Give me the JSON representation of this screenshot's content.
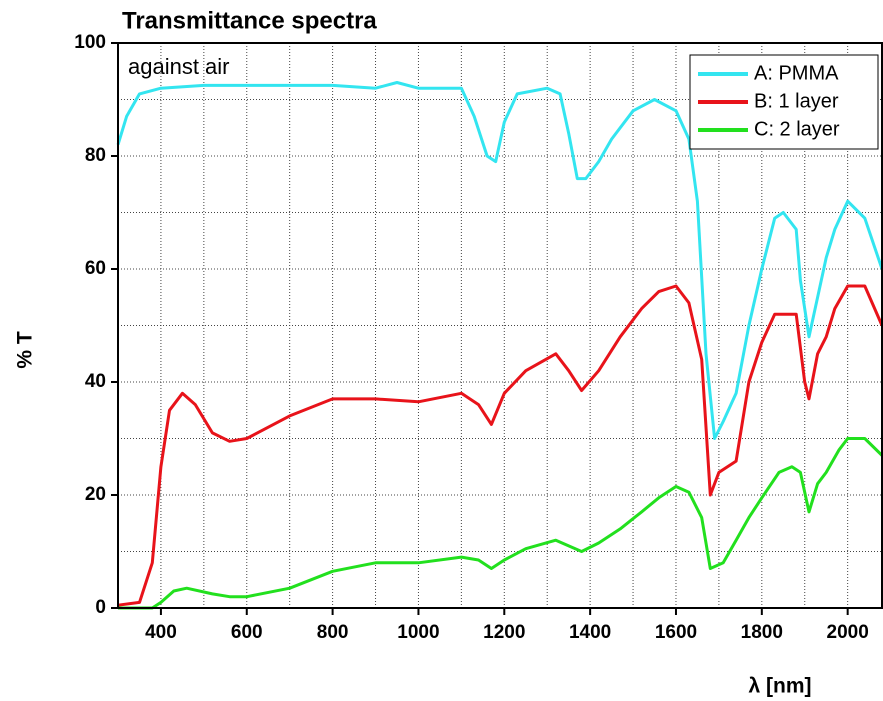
{
  "chart_data": {
    "type": "line",
    "title": "Transmittance spectra",
    "annotation": "against air",
    "xlabel": "λ [nm]",
    "ylabel": "% T",
    "xlim": [
      300,
      2080
    ],
    "xticks": [
      400,
      600,
      800,
      1000,
      1200,
      1400,
      1600,
      1800,
      2000
    ],
    "ylim": [
      0,
      100
    ],
    "yticks": [
      0,
      20,
      40,
      60,
      80,
      100
    ],
    "grid": true,
    "legend": "upper right",
    "series": [
      {
        "name": "A: PMMA",
        "color": "#33e5f0",
        "x": [
          300,
          320,
          350,
          400,
          500,
          600,
          700,
          800,
          900,
          950,
          1000,
          1050,
          1100,
          1130,
          1160,
          1180,
          1200,
          1230,
          1300,
          1330,
          1350,
          1370,
          1390,
          1420,
          1450,
          1500,
          1550,
          1600,
          1630,
          1650,
          1670,
          1690,
          1710,
          1740,
          1770,
          1800,
          1830,
          1850,
          1880,
          1890,
          1910,
          1930,
          1950,
          1970,
          2000,
          2040,
          2080
        ],
        "values": [
          82,
          87,
          91,
          92,
          92.5,
          92.5,
          92.5,
          92.5,
          92,
          93,
          92,
          92,
          92,
          87,
          80,
          79,
          86,
          91,
          92,
          91,
          84,
          76,
          76,
          79,
          83,
          88,
          90,
          88,
          83,
          72,
          45,
          30,
          33,
          38,
          50,
          60,
          69,
          70,
          67,
          58,
          48,
          55,
          62,
          67,
          72,
          69,
          60
        ]
      },
      {
        "name": "B: 1 layer",
        "color": "#e8131a",
        "x": [
          300,
          350,
          380,
          400,
          420,
          450,
          480,
          520,
          560,
          600,
          700,
          800,
          900,
          1000,
          1100,
          1140,
          1170,
          1200,
          1250,
          1320,
          1350,
          1380,
          1420,
          1470,
          1520,
          1560,
          1600,
          1630,
          1660,
          1680,
          1700,
          1740,
          1770,
          1800,
          1830,
          1850,
          1880,
          1900,
          1910,
          1930,
          1950,
          1970,
          2000,
          2040,
          2080
        ],
        "values": [
          0.5,
          1,
          8,
          25,
          35,
          38,
          36,
          31,
          29.5,
          30,
          34,
          37,
          37,
          36.5,
          38,
          36,
          32.5,
          38,
          42,
          45,
          42,
          38.5,
          42,
          48,
          53,
          56,
          57,
          54,
          44,
          20,
          24,
          26,
          40,
          47,
          52,
          52,
          52,
          40,
          37,
          45,
          48,
          53,
          57,
          57,
          50
        ]
      },
      {
        "name": "C: 2 layer",
        "color": "#22e01e",
        "x": [
          300,
          380,
          400,
          430,
          460,
          520,
          560,
          600,
          700,
          800,
          900,
          1000,
          1100,
          1140,
          1170,
          1200,
          1250,
          1320,
          1350,
          1380,
          1420,
          1470,
          1520,
          1560,
          1600,
          1630,
          1660,
          1680,
          1710,
          1740,
          1770,
          1800,
          1840,
          1870,
          1890,
          1910,
          1930,
          1950,
          1980,
          2000,
          2040,
          2080
        ],
        "values": [
          0,
          0,
          1,
          3,
          3.5,
          2.5,
          2,
          2,
          3.5,
          6.5,
          8,
          8,
          9,
          8.5,
          7,
          8.5,
          10.5,
          12,
          11,
          10,
          11.5,
          14,
          17,
          19.5,
          21.5,
          20.5,
          16,
          7,
          8,
          12,
          16,
          19.5,
          24,
          25,
          24,
          17,
          22,
          24,
          28,
          30,
          30,
          27
        ]
      }
    ]
  }
}
